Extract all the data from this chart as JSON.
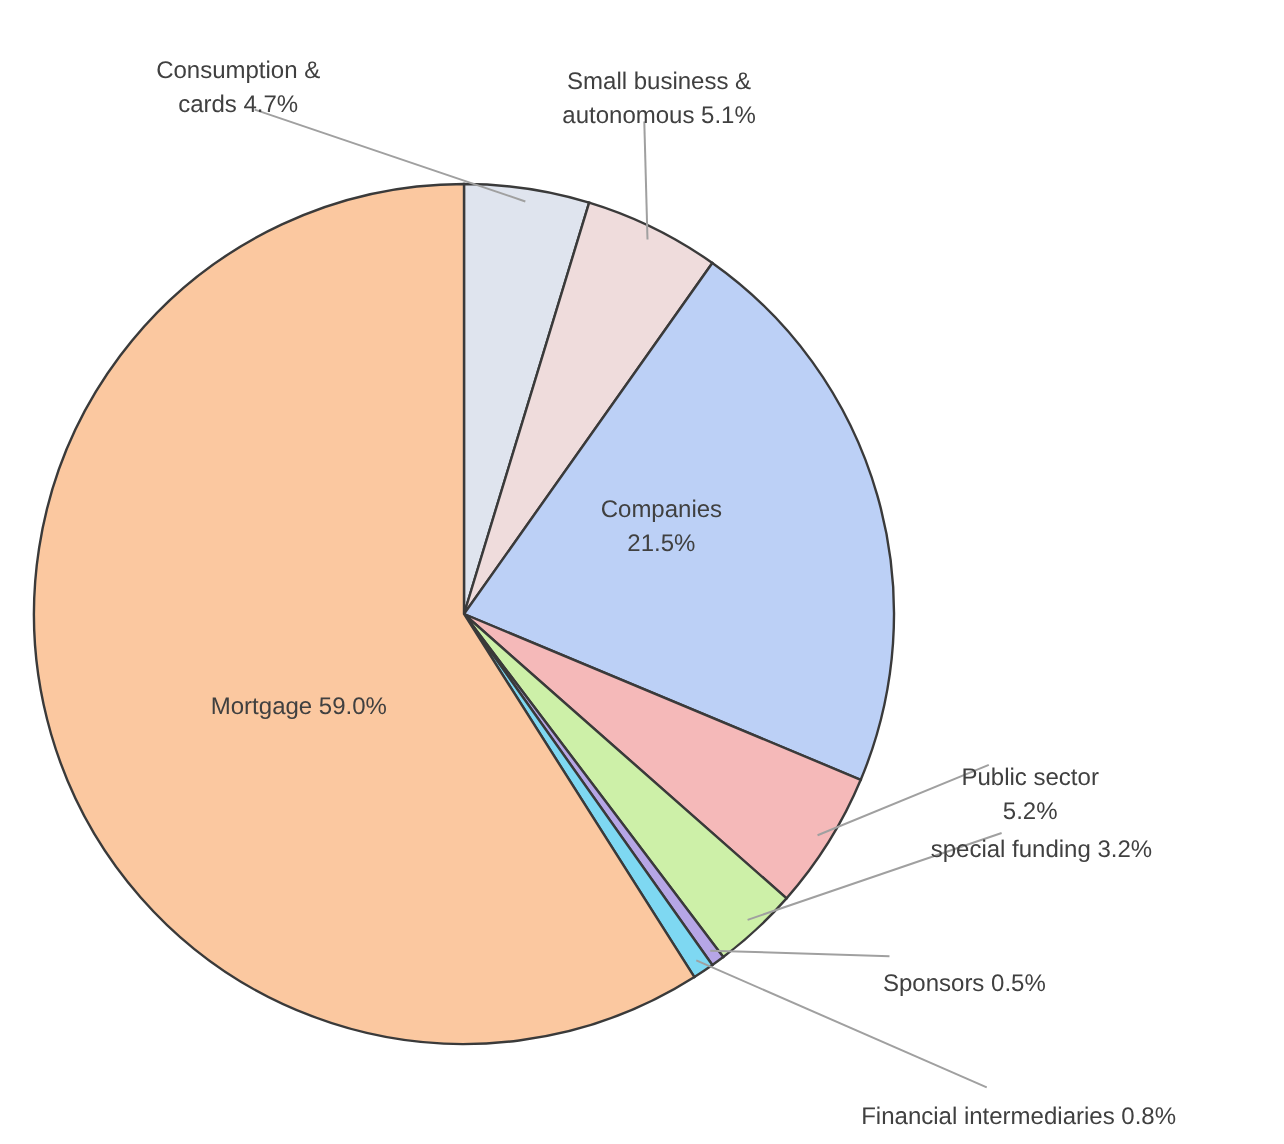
{
  "chart_data": {
    "type": "pie",
    "categories": [
      "Consumption & cards",
      "Small business & autonomous",
      "Companies",
      "Public sector",
      "special funding",
      "Sponsors",
      "Financial intermediaries",
      "Mortgage"
    ],
    "values": [
      4.7,
      5.1,
      21.5,
      5.2,
      3.2,
      0.5,
      0.8,
      59.0
    ],
    "colors": [
      "#dfe4ee",
      "#efdcdc",
      "#bcd0f6",
      "#f5b9b9",
      "#cdf0a8",
      "#b6a6e6",
      "#7ed8f2",
      "#fbc8a0"
    ],
    "value_labels": [
      "4.7%",
      "5.1%",
      "21.5%",
      "5.2%",
      "3.2%",
      "0.5%",
      "0.8%",
      "59.0%"
    ]
  }
}
